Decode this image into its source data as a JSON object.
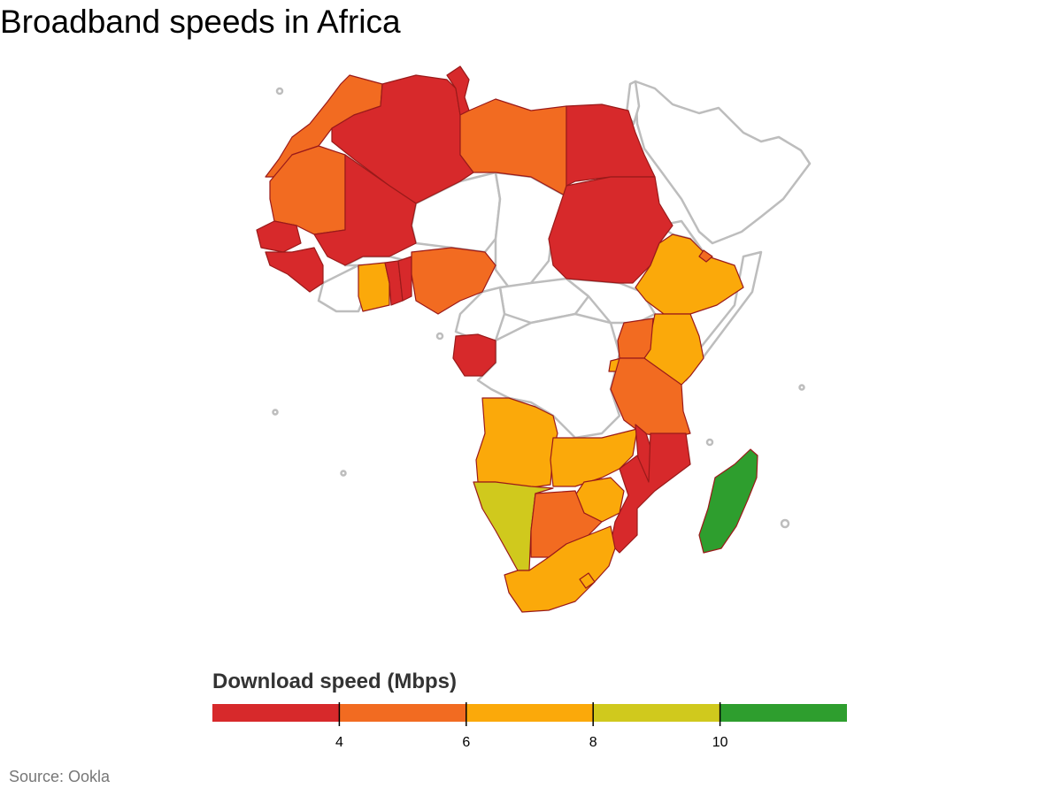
{
  "title": "Broadband speeds in Africa",
  "legend": {
    "title": "Download speed (Mbps)",
    "bins": [
      {
        "from": 2,
        "to": 4,
        "color": "#d7292b"
      },
      {
        "from": 4,
        "to": 6,
        "color": "#f26b21"
      },
      {
        "from": 6,
        "to": 8,
        "color": "#fba90a"
      },
      {
        "from": 8,
        "to": 10,
        "color": "#d0c91d"
      },
      {
        "from": 10,
        "to": 12,
        "color": "#2e9e2e"
      }
    ],
    "ticks": [
      "4",
      "6",
      "8",
      "10"
    ]
  },
  "source": "Source: Ookla",
  "colors": {
    "red": "#d7292b",
    "orange": "#f26b21",
    "amber": "#fba90a",
    "olive": "#d0c91d",
    "green": "#2e9e2e",
    "no_data_fill": "#ffffff",
    "no_data_border": "#bdbdbd"
  }
}
